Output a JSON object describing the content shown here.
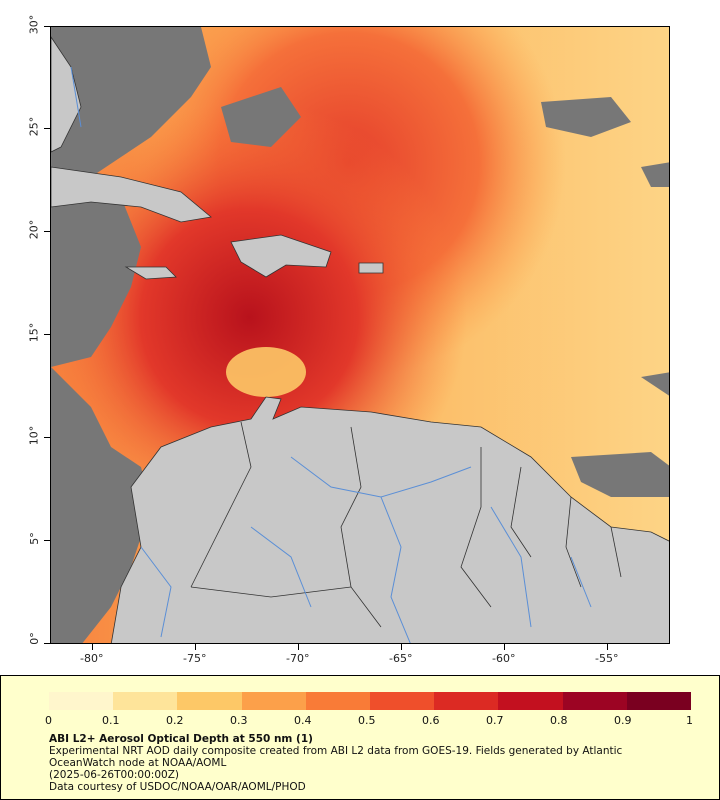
{
  "map": {
    "lat_labels": [
      "30°",
      "25°",
      "20°",
      "15°",
      "10°",
      "5°",
      "0°"
    ],
    "lon_labels": [
      "-80°",
      "-75°",
      "-70°",
      "-65°",
      "-60°",
      "-55°"
    ],
    "colors": {
      "land": "#c8c8c8",
      "no_data": "#777777",
      "border": "#333333",
      "river": "#5b8fd6"
    }
  },
  "legend": {
    "ticks": [
      "0",
      "0.1",
      "0.2",
      "0.3",
      "0.4",
      "0.5",
      "0.6",
      "0.7",
      "0.8",
      "0.9",
      "1"
    ],
    "title": "ABI L2+ Aerosol Optical Depth at 550 nm (1)",
    "line1": "Experimental NRT AOD daily composite created from ABI L2 data from GOES-19. Fields generated by Atlantic OceanWatch node at NOAA/AOML",
    "line2": "(2025-06-26T00:00:00Z)",
    "line3": "Data courtesy of USDOC/NOAA/OAR/AOML/PHOD",
    "colorbar_stops": [
      "#fff6cc",
      "#fee49a",
      "#fdc867",
      "#fca04a",
      "#f97b37",
      "#ef4f2b",
      "#dc2a23",
      "#c3101f",
      "#9c0423",
      "#7a0020"
    ]
  }
}
